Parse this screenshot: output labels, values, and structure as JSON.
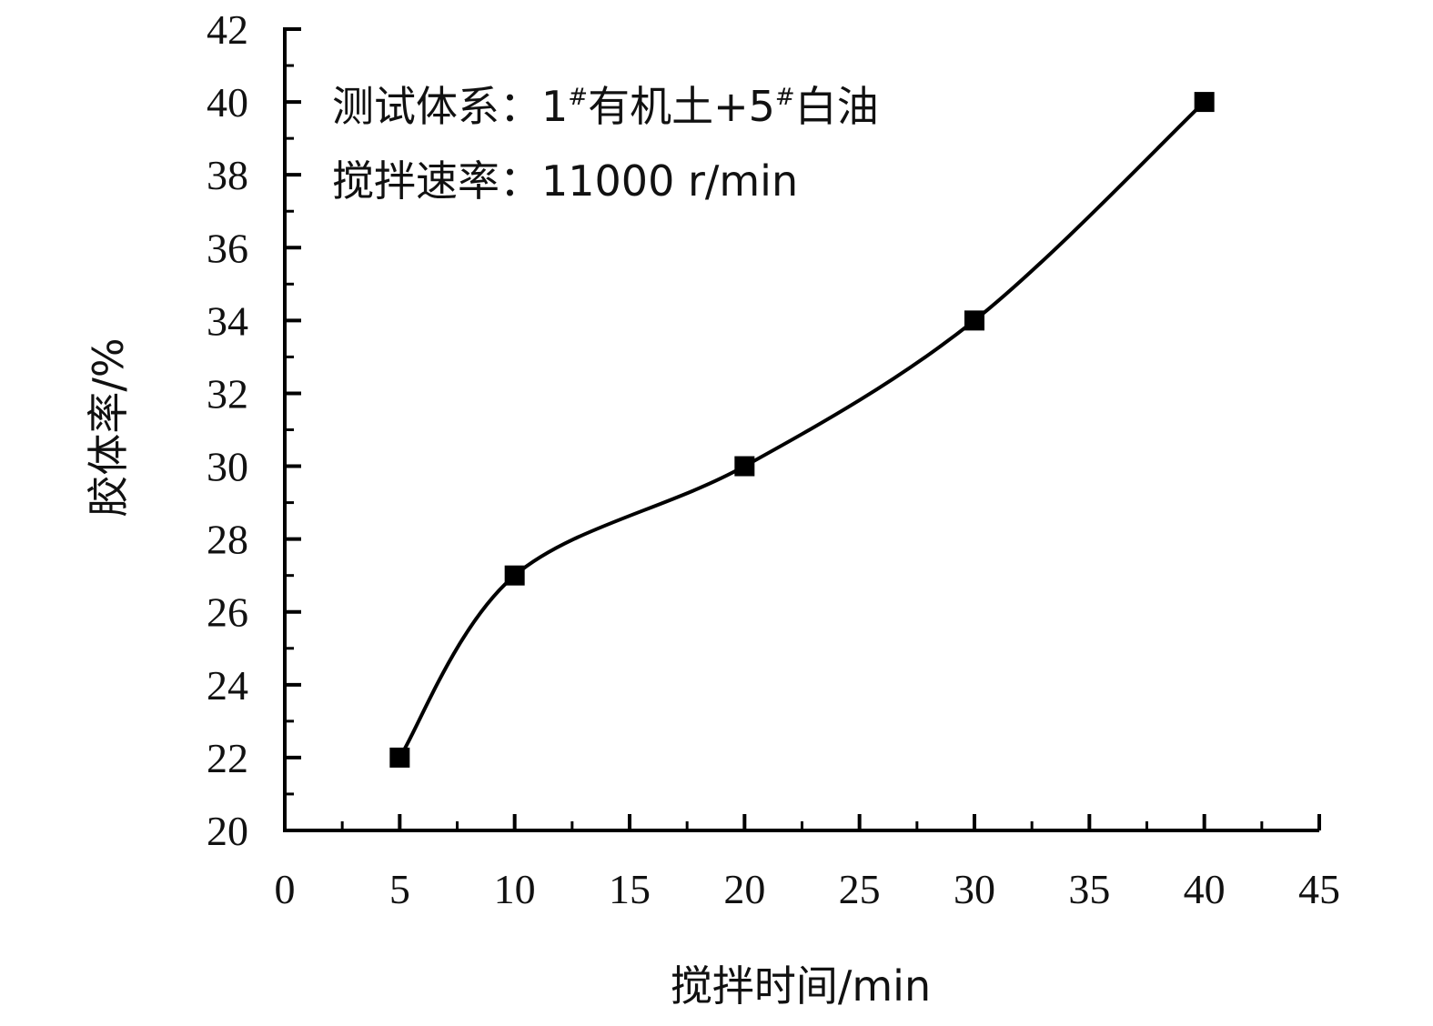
{
  "chart_data": {
    "type": "scatter",
    "title": "",
    "xlabel": "搅拌时间/min",
    "ylabel": "胶体率/%",
    "xlim": [
      0,
      45
    ],
    "ylim": [
      20,
      42
    ],
    "x_ticks": [
      "0",
      "5",
      "10",
      "15",
      "20",
      "25",
      "30",
      "35",
      "40",
      "45"
    ],
    "y_ticks": [
      "20",
      "22",
      "24",
      "26",
      "28",
      "30",
      "32",
      "34",
      "36",
      "38",
      "40",
      "42"
    ],
    "series": [
      {
        "x": [
          5,
          10,
          20,
          30,
          40
        ],
        "y": [
          22,
          27,
          30,
          34,
          40
        ],
        "marker": "square",
        "line": "smooth",
        "color": "#000000"
      }
    ],
    "annotations": {
      "line1_prefix": "测试体系：1",
      "sup1": "#",
      "line1_mid": "有机土+5",
      "sup2": "#",
      "line1_suffix": "白油",
      "line2": "搅拌速率：11000 r/min"
    },
    "grid": false,
    "legend": "none"
  }
}
